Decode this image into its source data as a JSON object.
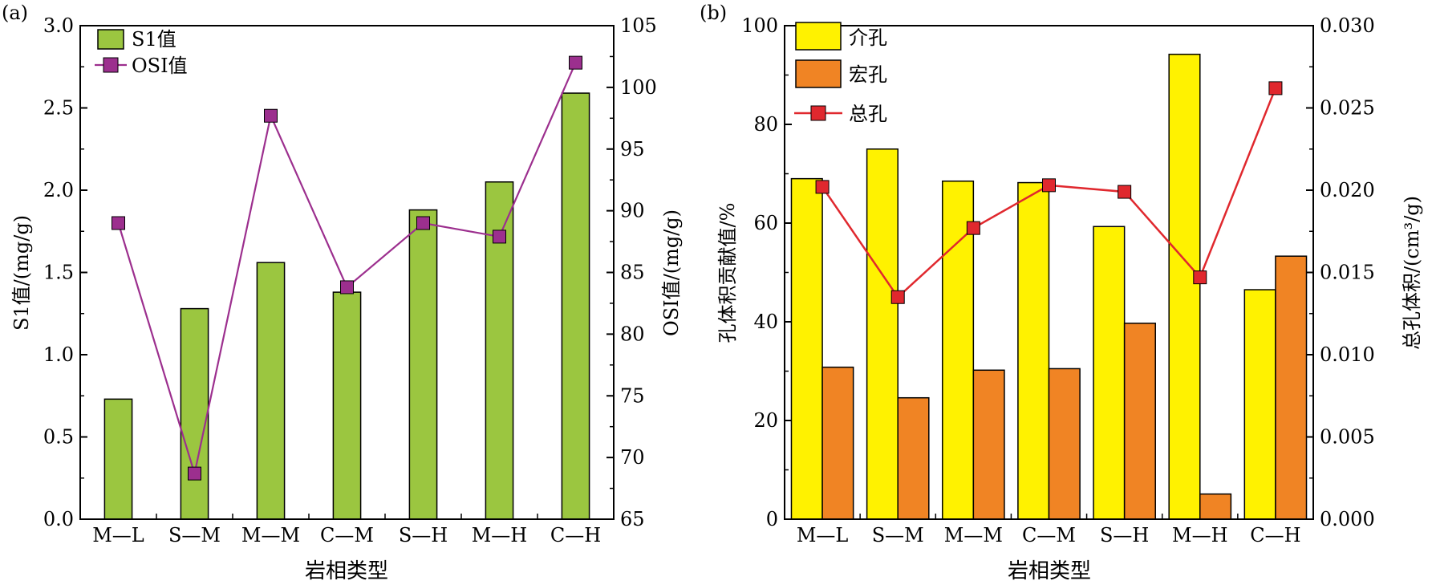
{
  "chart_data": [
    {
      "panel_label": "(a)",
      "type": "bar",
      "categories": [
        "M—L",
        "S—M",
        "M—M",
        "C—M",
        "S—H",
        "M—H",
        "C—H"
      ],
      "xlabel": "岩相类型",
      "ylabel_left": "S1值/(mg/g)",
      "ylabel_right": "OSI值/(mg/g)",
      "ylim_left": [
        0,
        3.0
      ],
      "ylim_right": [
        65,
        105
      ],
      "left_ticks": [
        "0.0",
        "0.5",
        "1.0",
        "1.5",
        "2.0",
        "2.5",
        "3.0"
      ],
      "right_ticks": [
        "65",
        "70",
        "75",
        "80",
        "85",
        "90",
        "95",
        "100",
        "105"
      ],
      "series": [
        {
          "name": "S1值",
          "kind": "bar",
          "axis": "left",
          "color": "#9bc640",
          "values": [
            0.73,
            1.28,
            1.56,
            1.38,
            1.88,
            2.05,
            2.59
          ]
        },
        {
          "name": "OSI值",
          "kind": "line",
          "axis": "right",
          "color": "#9c2f8e",
          "values": [
            89.0,
            68.7,
            97.7,
            83.8,
            89.0,
            87.9,
            102.0
          ]
        }
      ],
      "legend_position": "top-left",
      "grid": false
    },
    {
      "panel_label": "(b)",
      "type": "bar",
      "categories": [
        "M—L",
        "S—M",
        "M—M",
        "C—M",
        "S—H",
        "M—H",
        "C—H"
      ],
      "xlabel": "岩相类型",
      "ylabel_left": "孔体积贡献值/%",
      "ylabel_right": "总孔体积/(cm³/g)",
      "ylim_left": [
        0,
        100
      ],
      "ylim_right": [
        0,
        0.03
      ],
      "left_ticks": [
        "0",
        "20",
        "40",
        "60",
        "80",
        "100"
      ],
      "right_ticks": [
        "0.000",
        "0.005",
        "0.010",
        "0.015",
        "0.020",
        "0.025",
        "0.030"
      ],
      "series": [
        {
          "name": "介孔",
          "kind": "bar",
          "axis": "left",
          "color": "#fff200",
          "values": [
            69.0,
            75.0,
            68.5,
            68.2,
            59.3,
            94.2,
            46.5
          ]
        },
        {
          "name": "宏孔",
          "kind": "bar",
          "axis": "left",
          "color": "#f08424",
          "values": [
            30.8,
            24.6,
            30.2,
            30.5,
            39.7,
            5.1,
            53.3
          ]
        },
        {
          "name": "总孔",
          "kind": "line",
          "axis": "right",
          "color": "#e0282e",
          "values": [
            0.0202,
            0.0135,
            0.0177,
            0.0203,
            0.0199,
            0.0147,
            0.0262
          ]
        }
      ],
      "legend_position": "top-left",
      "grid": false
    }
  ]
}
